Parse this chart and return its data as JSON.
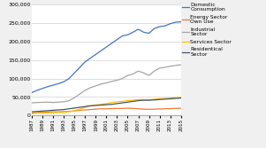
{
  "years": [
    1987,
    1988,
    1989,
    1990,
    1991,
    1992,
    1993,
    1994,
    1995,
    1996,
    1997,
    1998,
    1999,
    2000,
    2001,
    2002,
    2003,
    2004,
    2005,
    2006,
    2007,
    2008,
    2009,
    2010,
    2011,
    2012,
    2013,
    2014,
    2015
  ],
  "domestic_consumption": [
    62000,
    68000,
    73000,
    78000,
    82000,
    86000,
    91000,
    100000,
    115000,
    130000,
    145000,
    155000,
    165000,
    175000,
    185000,
    195000,
    205000,
    215000,
    218000,
    225000,
    233000,
    225000,
    222000,
    235000,
    240000,
    242000,
    248000,
    252000,
    253000
  ],
  "energy_sector_own_use": [
    7000,
    8000,
    9000,
    9500,
    10000,
    10000,
    10500,
    11000,
    12000,
    14000,
    15000,
    16000,
    17000,
    18000,
    18000,
    18500,
    19000,
    19000,
    19500,
    19000,
    18000,
    17000,
    16500,
    17000,
    17500,
    18000,
    18500,
    19000,
    19500
  ],
  "industrial_sector": [
    34000,
    35000,
    35500,
    36000,
    35000,
    36000,
    37000,
    40000,
    48000,
    58000,
    68000,
    75000,
    80000,
    85000,
    88000,
    92000,
    95000,
    100000,
    108000,
    112000,
    120000,
    115000,
    108000,
    120000,
    128000,
    130000,
    133000,
    135000,
    137000
  ],
  "services_sector": [
    5000,
    6000,
    7000,
    7000,
    7500,
    8000,
    8000,
    10000,
    13000,
    17000,
    22000,
    26000,
    28000,
    30000,
    32000,
    35000,
    37000,
    38000,
    40000,
    41000,
    43000,
    43000,
    42000,
    44000,
    45000,
    46000,
    47000,
    48000,
    49000
  ],
  "residential_sector": [
    10000,
    11000,
    12000,
    13000,
    14000,
    15000,
    16000,
    18000,
    20000,
    22000,
    24000,
    26000,
    27000,
    28000,
    29000,
    30000,
    32000,
    34000,
    36000,
    38000,
    40000,
    41000,
    41000,
    42000,
    43000,
    44000,
    45000,
    46000,
    47000
  ],
  "line_colors": [
    "#4472C4",
    "#ED7D31",
    "#A5A5A5",
    "#FFC000",
    "#44546A"
  ],
  "legend_labels": [
    "Domestic\nConsumption",
    "Energy Sector\nOwn Use",
    "Industrial\nSector",
    "Services Sector",
    "Residentical\nSector"
  ],
  "ylim": [
    0,
    300000
  ],
  "yticks": [
    0,
    50000,
    100000,
    150000,
    200000,
    250000,
    300000
  ],
  "xtick_years": [
    1987,
    1989,
    1991,
    1993,
    1995,
    1997,
    1999,
    2001,
    2003,
    2005,
    2007,
    2009,
    2011,
    2013,
    2015
  ],
  "background_color": "#f0f0f0",
  "plot_bg": "#ffffff"
}
